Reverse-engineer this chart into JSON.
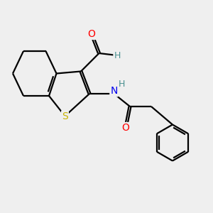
{
  "bg_color": "#efefef",
  "atom_colors": {
    "S": "#c8b400",
    "N": "#0000ee",
    "O": "#ff0000",
    "C": "#000000",
    "H": "#4a9090"
  },
  "bond_color": "#000000",
  "bond_width": 1.6,
  "figsize": [
    3.0,
    3.0
  ],
  "dpi": 100
}
